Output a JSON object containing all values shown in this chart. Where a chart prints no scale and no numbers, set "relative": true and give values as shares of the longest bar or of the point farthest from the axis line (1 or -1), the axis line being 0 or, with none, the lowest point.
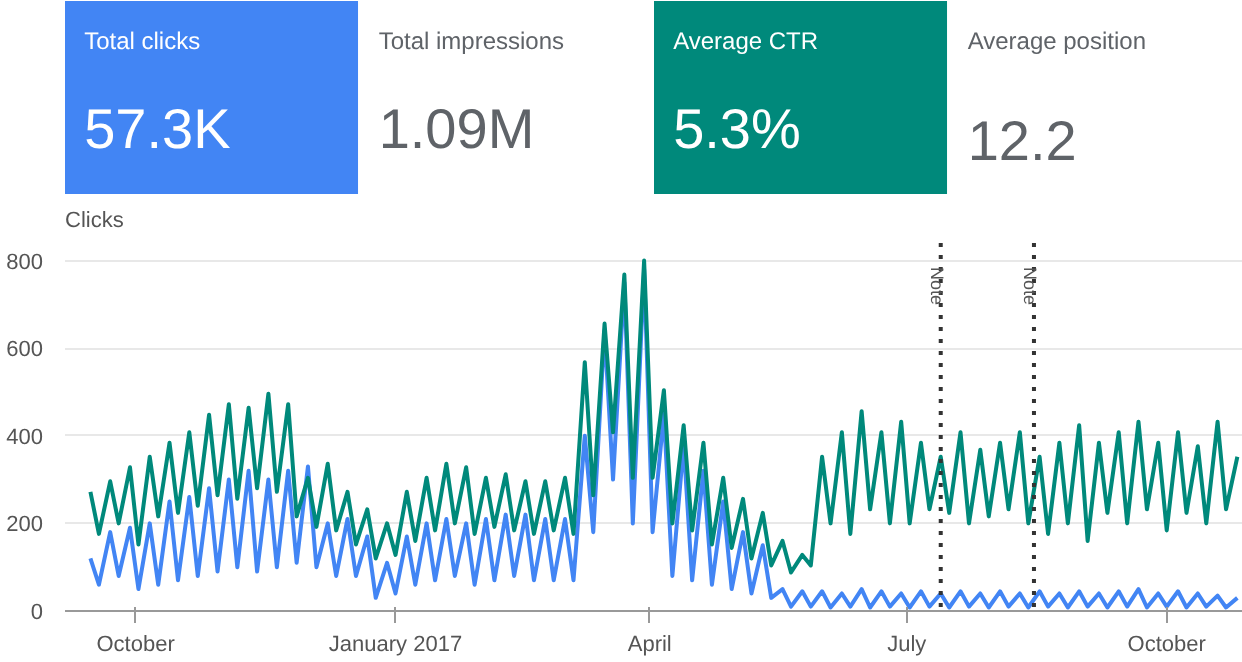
{
  "chart_data": [
    {
      "type": "other",
      "annotations": [
        "Total clicks",
        "57.3K",
        "Total impressions",
        "1.09M",
        "Average CTR",
        "5.3%",
        "Average position",
        "12.2"
      ],
      "colors": [
        "#4285f4",
        "#ffffff",
        "#00897b",
        "#ffffff"
      ]
    },
    {
      "type": "line",
      "ylabel": "Clicks",
      "x": [
        "2016-09-15",
        "2016-09-18",
        "2016-09-22",
        "2016-09-25",
        "2016-09-29",
        "2016-10-02",
        "2016-10-06",
        "2016-10-09",
        "2016-10-13",
        "2016-10-16",
        "2016-10-20",
        "2016-10-23",
        "2016-10-27",
        "2016-10-30",
        "2016-11-03",
        "2016-11-06",
        "2016-11-10",
        "2016-11-13",
        "2016-11-17",
        "2016-11-20",
        "2016-11-24",
        "2016-11-27",
        "2016-12-01",
        "2016-12-04",
        "2016-12-08",
        "2016-12-11",
        "2016-12-15",
        "2016-12-18",
        "2016-12-22",
        "2016-12-25",
        "2016-12-29",
        "2017-01-01",
        "2017-01-05",
        "2017-01-08",
        "2017-01-12",
        "2017-01-15",
        "2017-01-19",
        "2017-01-22",
        "2017-01-26",
        "2017-01-29",
        "2017-02-02",
        "2017-02-05",
        "2017-02-09",
        "2017-02-12",
        "2017-02-16",
        "2017-02-19",
        "2017-02-23",
        "2017-02-26",
        "2017-03-02",
        "2017-03-05",
        "2017-03-09",
        "2017-03-12",
        "2017-03-16",
        "2017-03-19",
        "2017-03-23",
        "2017-03-26",
        "2017-03-30",
        "2017-04-02",
        "2017-04-06",
        "2017-04-09",
        "2017-04-13",
        "2017-04-16",
        "2017-04-20",
        "2017-04-23",
        "2017-04-27",
        "2017-04-30",
        "2017-05-04",
        "2017-05-07",
        "2017-05-11",
        "2017-05-14",
        "2017-05-18",
        "2017-05-21",
        "2017-05-25",
        "2017-05-28",
        "2017-06-01",
        "2017-06-04",
        "2017-06-08",
        "2017-06-11",
        "2017-06-15",
        "2017-06-18",
        "2017-06-22",
        "2017-06-25",
        "2017-06-29",
        "2017-07-02",
        "2017-07-06",
        "2017-07-09",
        "2017-07-13",
        "2017-07-16",
        "2017-07-20",
        "2017-07-23",
        "2017-07-27",
        "2017-07-30",
        "2017-08-03",
        "2017-08-06",
        "2017-08-10",
        "2017-08-13",
        "2017-08-17",
        "2017-08-20",
        "2017-08-24",
        "2017-08-27",
        "2017-08-31",
        "2017-09-03",
        "2017-09-07",
        "2017-09-10",
        "2017-09-14",
        "2017-09-17",
        "2017-09-21",
        "2017-09-24",
        "2017-09-28",
        "2017-10-01",
        "2017-10-05",
        "2017-10-08",
        "2017-10-12",
        "2017-10-15",
        "2017-10-19",
        "2017-10-22",
        "2017-10-26"
      ],
      "series": [
        {
          "color": "#4285f4",
          "values": [
            120,
            60,
            180,
            80,
            190,
            50,
            200,
            60,
            250,
            70,
            260,
            80,
            280,
            90,
            300,
            100,
            320,
            90,
            300,
            100,
            320,
            110,
            330,
            100,
            200,
            80,
            210,
            80,
            170,
            30,
            110,
            40,
            170,
            60,
            200,
            70,
            210,
            80,
            200,
            60,
            210,
            70,
            220,
            80,
            220,
            70,
            210,
            70,
            210,
            70,
            400,
            180,
            640,
            300,
            750,
            200,
            780,
            180,
            450,
            80,
            380,
            70,
            320,
            60,
            250,
            50,
            180,
            40,
            150,
            30,
            50,
            10,
            45,
            10,
            45,
            8,
            40,
            10,
            50,
            8,
            45,
            10,
            40,
            8,
            45,
            10,
            40,
            8,
            45,
            10,
            40,
            8,
            45,
            10,
            40,
            8,
            45,
            10,
            40,
            8,
            45,
            10,
            40,
            8,
            45,
            10,
            50,
            8,
            40,
            10,
            45,
            8,
            40,
            10,
            35,
            8,
            30
          ]
        }
      ],
      "xlim": [
        "2016-09-06",
        "2017-10-28"
      ],
      "xticks": [
        {
          "value": "2016-10-01",
          "label": "October"
        },
        {
          "value": "2017-01-01",
          "label": "January 2017"
        },
        {
          "value": "2017-04-01",
          "label": "April"
        },
        {
          "value": "2017-07-01",
          "label": "July"
        },
        {
          "value": "2017-10-01",
          "label": "October"
        }
      ],
      "ylim": [
        0,
        840
      ],
      "yticks": [
        0,
        200,
        400,
        600,
        800
      ],
      "grid": "y",
      "line_style": "solid",
      "marker": "none",
      "ref_lines": [
        {
          "axis": "x",
          "value": "2017-07-13",
          "label": "Note",
          "color": "#333333",
          "line_style": "dotted"
        },
        {
          "axis": "x",
          "value": "2017-08-15",
          "label": "Note",
          "color": "#333333",
          "line_style": "dotted"
        }
      ]
    },
    {
      "type": "line",
      "relative": true,
      "xlim": [
        "2016-09-06",
        "2017-10-28"
      ],
      "tick_labels": false,
      "x": [
        "2016-09-15",
        "2016-09-18",
        "2016-09-22",
        "2016-09-25",
        "2016-09-29",
        "2016-10-02",
        "2016-10-06",
        "2016-10-09",
        "2016-10-13",
        "2016-10-16",
        "2016-10-20",
        "2016-10-23",
        "2016-10-27",
        "2016-10-30",
        "2016-11-03",
        "2016-11-06",
        "2016-11-10",
        "2016-11-13",
        "2016-11-17",
        "2016-11-20",
        "2016-11-24",
        "2016-11-27",
        "2016-12-01",
        "2016-12-04",
        "2016-12-08",
        "2016-12-11",
        "2016-12-15",
        "2016-12-18",
        "2016-12-22",
        "2016-12-25",
        "2016-12-29",
        "2017-01-01",
        "2017-01-05",
        "2017-01-08",
        "2017-01-12",
        "2017-01-15",
        "2017-01-19",
        "2017-01-22",
        "2017-01-26",
        "2017-01-29",
        "2017-02-02",
        "2017-02-05",
        "2017-02-09",
        "2017-02-12",
        "2017-02-16",
        "2017-02-19",
        "2017-02-23",
        "2017-02-26",
        "2017-03-02",
        "2017-03-05",
        "2017-03-09",
        "2017-03-12",
        "2017-03-16",
        "2017-03-19",
        "2017-03-23",
        "2017-03-26",
        "2017-03-30",
        "2017-04-02",
        "2017-04-06",
        "2017-04-09",
        "2017-04-13",
        "2017-04-16",
        "2017-04-20",
        "2017-04-23",
        "2017-04-27",
        "2017-04-30",
        "2017-05-04",
        "2017-05-07",
        "2017-05-11",
        "2017-05-14",
        "2017-05-18",
        "2017-05-21",
        "2017-05-25",
        "2017-05-28",
        "2017-06-01",
        "2017-06-04",
        "2017-06-08",
        "2017-06-11",
        "2017-06-15",
        "2017-06-18",
        "2017-06-22",
        "2017-06-25",
        "2017-06-29",
        "2017-07-02",
        "2017-07-06",
        "2017-07-09",
        "2017-07-13",
        "2017-07-16",
        "2017-07-20",
        "2017-07-23",
        "2017-07-27",
        "2017-07-30",
        "2017-08-03",
        "2017-08-06",
        "2017-08-10",
        "2017-08-13",
        "2017-08-17",
        "2017-08-20",
        "2017-08-24",
        "2017-08-27",
        "2017-08-31",
        "2017-09-03",
        "2017-09-07",
        "2017-09-10",
        "2017-09-14",
        "2017-09-17",
        "2017-09-21",
        "2017-09-24",
        "2017-09-28",
        "2017-10-01",
        "2017-10-05",
        "2017-10-08",
        "2017-10-12",
        "2017-10-15",
        "2017-10-19",
        "2017-10-22",
        "2017-10-26"
      ],
      "series": [
        {
          "color": "#00897b",
          "values": [
            0.34,
            0.22,
            0.37,
            0.25,
            0.41,
            0.19,
            0.44,
            0.27,
            0.48,
            0.28,
            0.51,
            0.3,
            0.56,
            0.33,
            0.59,
            0.32,
            0.58,
            0.35,
            0.62,
            0.34,
            0.59,
            0.27,
            0.38,
            0.24,
            0.42,
            0.23,
            0.34,
            0.19,
            0.29,
            0.15,
            0.25,
            0.16,
            0.34,
            0.2,
            0.38,
            0.23,
            0.42,
            0.25,
            0.41,
            0.22,
            0.38,
            0.24,
            0.39,
            0.23,
            0.37,
            0.22,
            0.37,
            0.23,
            0.38,
            0.22,
            0.71,
            0.33,
            0.82,
            0.51,
            0.96,
            0.38,
            1,
            0.38,
            0.63,
            0.25,
            0.53,
            0.23,
            0.48,
            0.19,
            0.38,
            0.18,
            0.32,
            0.15,
            0.28,
            0.13,
            0.2,
            0.11,
            0.16,
            0.13,
            0.44,
            0.25,
            0.51,
            0.22,
            0.57,
            0.29,
            0.51,
            0.25,
            0.54,
            0.25,
            0.48,
            0.29,
            0.44,
            0.28,
            0.51,
            0.25,
            0.46,
            0.27,
            0.48,
            0.29,
            0.51,
            0.25,
            0.44,
            0.22,
            0.48,
            0.25,
            0.53,
            0.2,
            0.48,
            0.28,
            0.51,
            0.25,
            0.54,
            0.29,
            0.48,
            0.23,
            0.51,
            0.28,
            0.47,
            0.25,
            0.54,
            0.29,
            0.44
          ]
        }
      ]
    }
  ]
}
